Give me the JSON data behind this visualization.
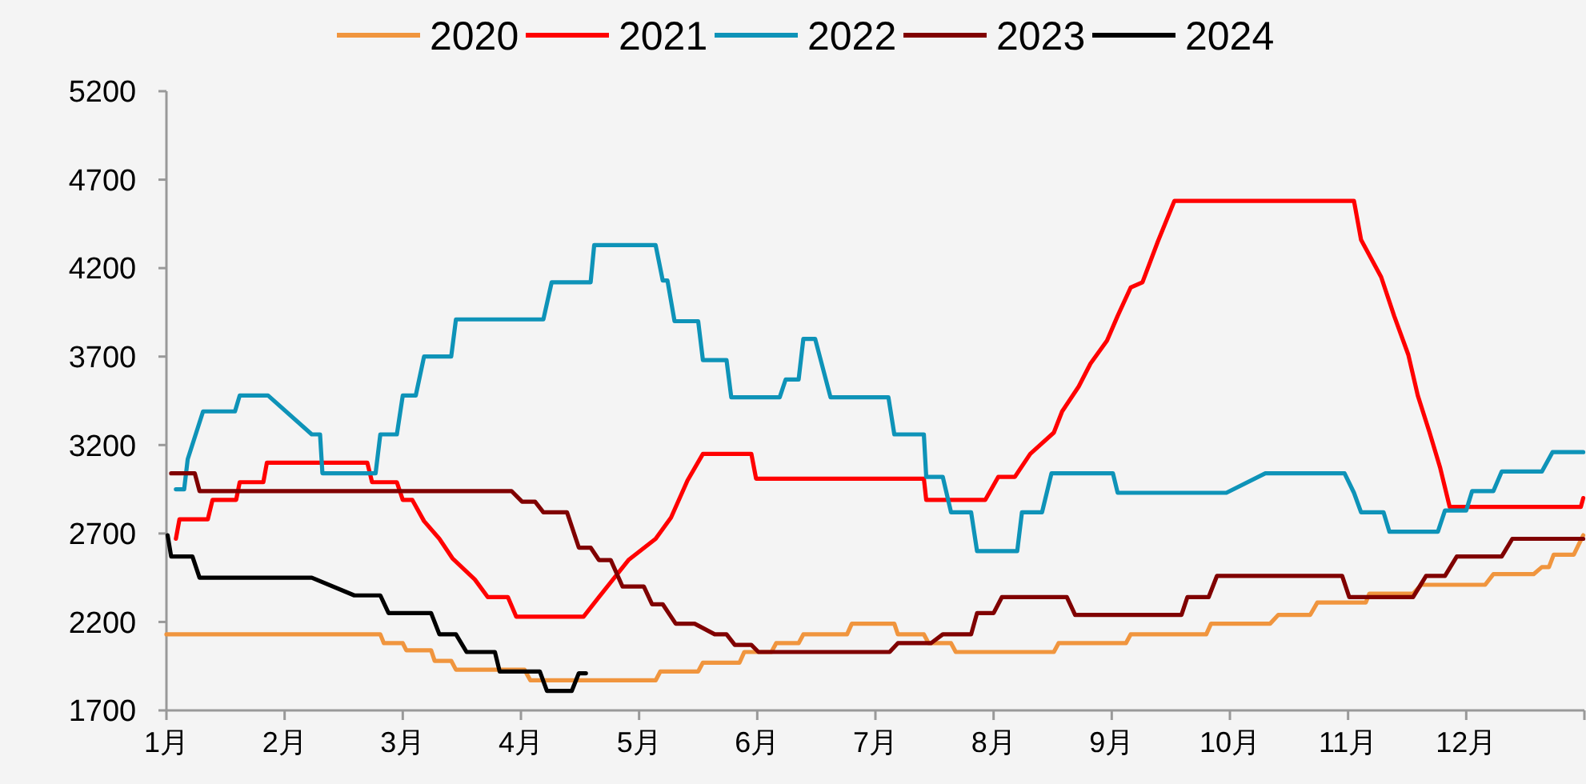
{
  "chart_data": {
    "type": "line",
    "legend": "top",
    "grid": false,
    "xlim": [
      1,
      13
    ],
    "xticks": [
      {
        "value": 1,
        "label": "1月"
      },
      {
        "value": 2,
        "label": "2月"
      },
      {
        "value": 3,
        "label": "3月"
      },
      {
        "value": 4,
        "label": "4月"
      },
      {
        "value": 5,
        "label": "5月"
      },
      {
        "value": 6,
        "label": "6月"
      },
      {
        "value": 7,
        "label": "7月"
      },
      {
        "value": 8,
        "label": "8月"
      },
      {
        "value": 9,
        "label": "9月"
      },
      {
        "value": 10,
        "label": "10月"
      },
      {
        "value": 11,
        "label": "11月"
      },
      {
        "value": 12,
        "label": "12月"
      },
      {
        "value": 13,
        "label": null
      }
    ],
    "ylim": [
      1700,
      5200
    ],
    "yticks": [
      1700,
      2200,
      2700,
      3200,
      3700,
      4200,
      4700,
      5200
    ],
    "series": [
      {
        "name": "2020",
        "color": "#f0953e",
        "x": [
          1.0,
          2.81,
          2.84,
          3.0,
          3.03,
          3.24,
          3.27,
          3.41,
          3.45,
          4.03,
          4.08,
          5.14,
          5.18,
          5.5,
          5.54,
          5.85,
          5.89,
          6.12,
          6.16,
          6.35,
          6.39,
          6.76,
          6.8,
          7.16,
          7.19,
          7.41,
          7.45,
          7.64,
          7.68,
          8.51,
          8.55,
          9.12,
          9.16,
          9.8,
          9.84,
          10.34,
          10.41,
          10.68,
          10.74,
          11.15,
          11.18,
          11.55,
          11.62,
          12.16,
          12.23,
          12.57,
          12.64,
          12.7,
          12.74,
          12.91,
          12.99
        ],
        "values": [
          2130,
          2130,
          2080,
          2080,
          2040,
          2040,
          1980,
          1980,
          1930,
          1930,
          1870,
          1870,
          1920,
          1920,
          1970,
          1970,
          2030,
          2030,
          2080,
          2080,
          2130,
          2130,
          2190,
          2190,
          2130,
          2130,
          2080,
          2080,
          2030,
          2030,
          2080,
          2080,
          2130,
          2130,
          2190,
          2190,
          2240,
          2240,
          2310,
          2310,
          2360,
          2360,
          2410,
          2410,
          2470,
          2470,
          2510,
          2510,
          2580,
          2580,
          2690
        ]
      },
      {
        "name": "2021",
        "color": "#ff0000",
        "x": [
          1.08,
          1.11,
          1.35,
          1.39,
          1.59,
          1.62,
          1.82,
          1.85,
          2.7,
          2.74,
          2.95,
          3.0,
          3.08,
          3.18,
          3.31,
          3.42,
          3.61,
          3.72,
          3.89,
          3.96,
          4.53,
          4.66,
          4.91,
          5.14,
          5.27,
          5.41,
          5.54,
          5.95,
          5.99,
          7.41,
          7.43,
          7.93,
          8.04,
          8.18,
          8.31,
          8.51,
          8.58,
          8.72,
          8.82,
          8.96,
          9.05,
          9.16,
          9.26,
          9.39,
          9.53,
          11.05,
          11.11,
          11.28,
          11.39,
          11.51,
          11.59,
          11.69,
          11.78,
          11.86,
          12.97,
          12.99
        ],
        "values": [
          2670,
          2780,
          2780,
          2890,
          2890,
          2990,
          2990,
          3100,
          3100,
          2990,
          2990,
          2890,
          2890,
          2770,
          2670,
          2560,
          2440,
          2340,
          2340,
          2230,
          2230,
          2340,
          2550,
          2670,
          2790,
          3000,
          3150,
          3150,
          3010,
          3010,
          2890,
          2890,
          3020,
          3020,
          3150,
          3270,
          3390,
          3530,
          3660,
          3790,
          3930,
          4090,
          4120,
          4350,
          4580,
          4580,
          4360,
          4150,
          3930,
          3710,
          3480,
          3270,
          3070,
          2850,
          2850,
          2900
        ]
      },
      {
        "name": "2022",
        "color": "#0e93b8",
        "x": [
          1.08,
          1.15,
          1.18,
          1.31,
          1.58,
          1.62,
          1.86,
          2.23,
          2.3,
          2.32,
          2.77,
          2.81,
          2.95,
          3.0,
          3.11,
          3.18,
          3.41,
          3.45,
          4.19,
          4.26,
          4.59,
          4.62,
          5.14,
          5.2,
          5.24,
          5.3,
          5.5,
          5.54,
          5.74,
          5.78,
          6.19,
          6.24,
          6.35,
          6.39,
          6.49,
          6.62,
          7.11,
          7.16,
          7.41,
          7.43,
          7.57,
          7.64,
          7.81,
          7.86,
          8.2,
          8.24,
          8.41,
          8.49,
          9.01,
          9.05,
          9.97,
          10.3,
          10.97,
          11.05,
          11.11,
          11.3,
          11.35,
          11.76,
          11.82,
          12.0,
          12.05,
          12.23,
          12.3,
          12.64,
          12.73,
          12.99
        ],
        "values": [
          2950,
          2950,
          3120,
          3390,
          3390,
          3480,
          3480,
          3260,
          3260,
          3040,
          3040,
          3260,
          3260,
          3480,
          3480,
          3700,
          3700,
          3910,
          3910,
          4120,
          4120,
          4330,
          4330,
          4130,
          4130,
          3900,
          3900,
          3680,
          3680,
          3470,
          3470,
          3570,
          3570,
          3800,
          3800,
          3470,
          3470,
          3260,
          3260,
          3020,
          3020,
          2820,
          2820,
          2600,
          2600,
          2820,
          2820,
          3040,
          3040,
          2930,
          2930,
          3040,
          3040,
          2930,
          2820,
          2820,
          2710,
          2710,
          2830,
          2830,
          2940,
          2940,
          3050,
          3050,
          3160,
          3160
        ]
      },
      {
        "name": "2023",
        "color": "#800000",
        "x": [
          1.04,
          1.24,
          1.28,
          3.92,
          4.01,
          4.12,
          4.19,
          4.39,
          4.49,
          4.59,
          4.66,
          4.76,
          4.86,
          5.04,
          5.11,
          5.2,
          5.31,
          5.47,
          5.64,
          5.74,
          5.81,
          5.95,
          6.01,
          7.12,
          7.19,
          7.47,
          7.57,
          7.81,
          7.86,
          8.0,
          8.07,
          8.62,
          8.69,
          9.59,
          9.64,
          9.82,
          9.89,
          10.95,
          11.01,
          11.55,
          11.66,
          11.82,
          11.92,
          12.3,
          12.39,
          12.99
        ],
        "values": [
          3040,
          3040,
          2940,
          2940,
          2880,
          2880,
          2820,
          2820,
          2620,
          2620,
          2550,
          2550,
          2400,
          2400,
          2300,
          2300,
          2190,
          2190,
          2130,
          2130,
          2070,
          2070,
          2030,
          2030,
          2080,
          2080,
          2130,
          2130,
          2250,
          2250,
          2340,
          2340,
          2240,
          2240,
          2340,
          2340,
          2460,
          2460,
          2340,
          2340,
          2460,
          2460,
          2570,
          2570,
          2670,
          2670
        ]
      },
      {
        "name": "2024",
        "color": "#000000",
        "x": [
          1.01,
          1.04,
          1.22,
          1.28,
          2.23,
          2.59,
          2.81,
          2.88,
          3.24,
          3.31,
          3.45,
          3.54,
          3.78,
          3.82,
          4.16,
          4.22,
          4.43,
          4.49,
          4.55
        ],
        "values": [
          2690,
          2570,
          2570,
          2450,
          2450,
          2350,
          2350,
          2250,
          2250,
          2130,
          2130,
          2030,
          2030,
          1920,
          1920,
          1810,
          1810,
          1910,
          1910
        ]
      }
    ]
  }
}
